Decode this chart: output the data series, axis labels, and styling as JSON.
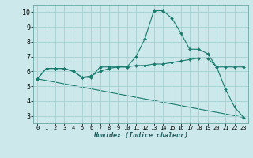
{
  "bg_color": "#cce8ea",
  "grid_color": "#a8d4d6",
  "line_color": "#1a7a6e",
  "xlabel": "Humidex (Indice chaleur)",
  "xlim": [
    -0.5,
    23.5
  ],
  "ylim": [
    2.5,
    10.5
  ],
  "yticks": [
    3,
    4,
    5,
    6,
    7,
    8,
    9,
    10
  ],
  "xticks": [
    0,
    1,
    2,
    3,
    4,
    5,
    6,
    7,
    8,
    9,
    10,
    11,
    12,
    13,
    14,
    15,
    16,
    17,
    18,
    19,
    20,
    21,
    22,
    23
  ],
  "curve1_x": [
    0,
    1,
    2,
    3,
    4,
    5,
    6,
    7,
    8,
    9,
    10,
    11,
    12,
    13,
    14,
    15,
    16,
    17,
    18,
    19,
    20,
    21,
    22,
    23
  ],
  "curve1_y": [
    5.5,
    6.2,
    6.2,
    6.2,
    6.0,
    5.6,
    5.6,
    6.3,
    6.3,
    6.3,
    6.3,
    7.0,
    8.2,
    10.1,
    10.1,
    9.6,
    8.6,
    7.5,
    7.5,
    7.2,
    6.3,
    4.8,
    3.6,
    2.9
  ],
  "curve2_x": [
    0,
    1,
    2,
    3,
    4,
    5,
    6,
    7,
    8,
    9,
    10,
    11,
    12,
    13,
    14,
    15,
    16,
    17,
    18,
    19,
    20,
    21,
    22,
    23
  ],
  "curve2_y": [
    5.5,
    6.2,
    6.2,
    6.2,
    6.0,
    5.6,
    5.7,
    6.0,
    6.2,
    6.3,
    6.3,
    6.4,
    6.4,
    6.5,
    6.5,
    6.6,
    6.7,
    6.8,
    6.9,
    6.9,
    6.3,
    6.3,
    6.3,
    6.3
  ],
  "curve3_x": [
    0,
    23
  ],
  "curve3_y": [
    5.5,
    2.9
  ],
  "markersize": 2.0
}
